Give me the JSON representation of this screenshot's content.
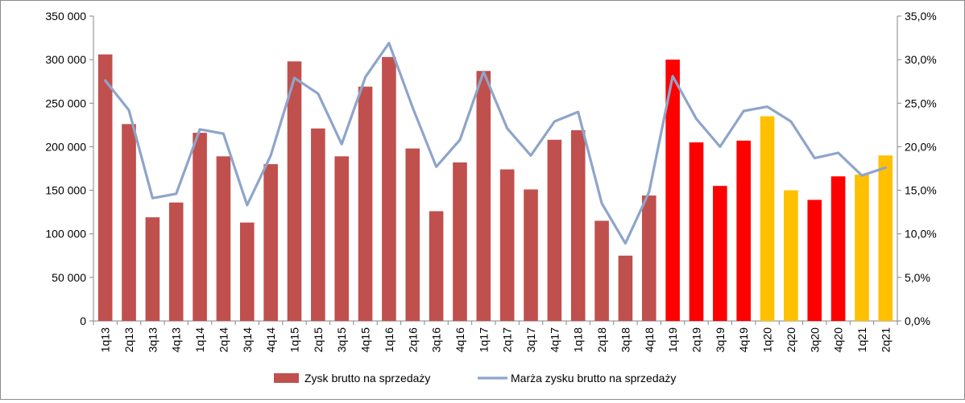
{
  "chart_data": {
    "type": "bar",
    "title": "",
    "categories": [
      "1q13",
      "2q13",
      "3q13",
      "4q13",
      "1q14",
      "2q14",
      "3q14",
      "4q14",
      "1q15",
      "2q15",
      "3q15",
      "4q15",
      "1q16",
      "2q16",
      "3q16",
      "4q16",
      "1q17",
      "2q17",
      "3q17",
      "4q17",
      "1q18",
      "2q18",
      "3q18",
      "4q18",
      "1q19",
      "2q19",
      "3q19",
      "4q19",
      "1q20",
      "2q20",
      "3q20",
      "4q20",
      "1q21",
      "2q21"
    ],
    "series": [
      {
        "name": "Zysk brutto na sprzedaży",
        "type": "bar",
        "axis": "left",
        "color": "#c0504d",
        "values": [
          306000,
          226000,
          119000,
          136000,
          216000,
          189000,
          113000,
          180000,
          298000,
          221000,
          189000,
          269000,
          303000,
          198000,
          126000,
          182000,
          287000,
          174000,
          151000,
          208000,
          219000,
          115000,
          75000,
          144000,
          300000,
          205000,
          155000,
          207000,
          235000,
          150000,
          139000,
          166000,
          168000,
          190000
        ],
        "bar_colors": [
          "#c0504d",
          "#c0504d",
          "#c0504d",
          "#c0504d",
          "#c0504d",
          "#c0504d",
          "#c0504d",
          "#c0504d",
          "#c0504d",
          "#c0504d",
          "#c0504d",
          "#c0504d",
          "#c0504d",
          "#c0504d",
          "#c0504d",
          "#c0504d",
          "#c0504d",
          "#c0504d",
          "#c0504d",
          "#c0504d",
          "#c0504d",
          "#c0504d",
          "#c0504d",
          "#c0504d",
          "#ff0000",
          "#ff0000",
          "#ff0000",
          "#ff0000",
          "#ffc000",
          "#ffc000",
          "#ff0000",
          "#ff0000",
          "#ffc000",
          "#ffc000"
        ]
      },
      {
        "name": "Marża zysku brutto na sprzedaży",
        "type": "line",
        "axis": "right",
        "color": "#8ea5cb",
        "values": [
          27.6,
          24.2,
          14.1,
          14.6,
          22.0,
          21.5,
          13.3,
          19.0,
          27.9,
          26.1,
          20.3,
          28.0,
          31.9,
          24.5,
          17.7,
          20.8,
          28.6,
          22.1,
          19.0,
          22.9,
          24.0,
          13.5,
          8.9,
          14.8,
          28.1,
          23.2,
          20.0,
          24.1,
          24.6,
          22.9,
          18.7,
          19.3,
          16.7,
          17.6
        ]
      }
    ],
    "y_left": {
      "min": 0,
      "max": 350000,
      "step": 50000,
      "tick_labels": [
        "0",
        "50 000",
        "100 000",
        "150 000",
        "200 000",
        "250 000",
        "300 000",
        "350 000"
      ]
    },
    "y_right": {
      "min": 0,
      "max": 35,
      "step": 5,
      "tick_labels": [
        "0,0%",
        "5,0%",
        "10,0%",
        "15,0%",
        "20,0%",
        "25,0%",
        "30,0%",
        "35,0%"
      ]
    },
    "grid": false,
    "legend_position": "bottom",
    "legend": [
      {
        "label": "Zysk brutto na sprzedaży",
        "kind": "bar",
        "color": "#c0504d"
      },
      {
        "label": "Marża zysku brutto na sprzedaży",
        "kind": "line",
        "color": "#8ea5cb"
      }
    ]
  }
}
